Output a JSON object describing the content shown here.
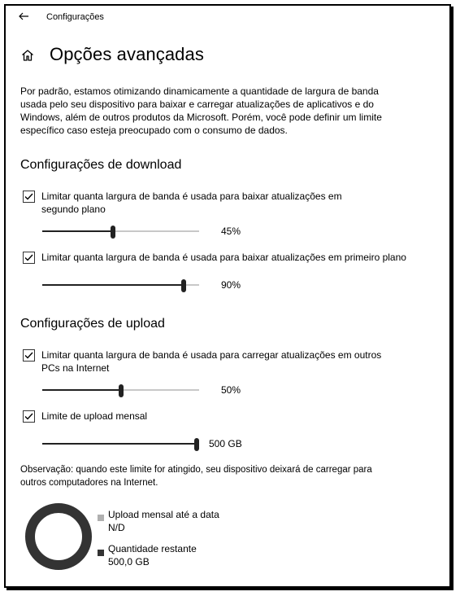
{
  "header": {
    "title": "Configurações",
    "back_icon": "back-arrow-icon"
  },
  "page": {
    "title": "Opções avançadas",
    "description": "Por padrão, estamos otimizando dinamicamente a quantidade de largura de banda usada pelo seu dispositivo para baixar e carregar atualizações de aplicativos e do Windows, além de outros produtos da Microsoft. Porém, você pode definir um limite específico caso esteja preocupado com o consumo de dados."
  },
  "download": {
    "heading": "Configurações de download",
    "background": {
      "label": "Limitar quanta largura de banda é usada para baixar atualizações em segundo plano",
      "checked": true,
      "value": 45,
      "value_label": "45%"
    },
    "foreground": {
      "label": "Limitar quanta largura de banda é usada para baixar atualizações em primeiro plano",
      "checked": true,
      "value": 90,
      "value_label": "90%"
    }
  },
  "upload": {
    "heading": "Configurações de upload",
    "internet": {
      "label": "Limitar quanta largura de banda é usada para carregar atualizações em outros PCs na Internet",
      "checked": true,
      "value": 50,
      "value_label": "50%"
    },
    "monthly": {
      "label": "Limite de upload mensal",
      "checked": true,
      "value": 100,
      "value_label": "500 GB"
    },
    "note": "Observação: quando este limite for atingido, seu dispositivo deixará de carregar para outros computadores na Internet."
  },
  "usage": {
    "used_label": "Upload mensal até a data",
    "used_value": "N/D",
    "remaining_label": "Quantidade restante",
    "remaining_value": "500,0 GB",
    "used_color": "#b0b0b0",
    "remaining_color": "#333333"
  }
}
